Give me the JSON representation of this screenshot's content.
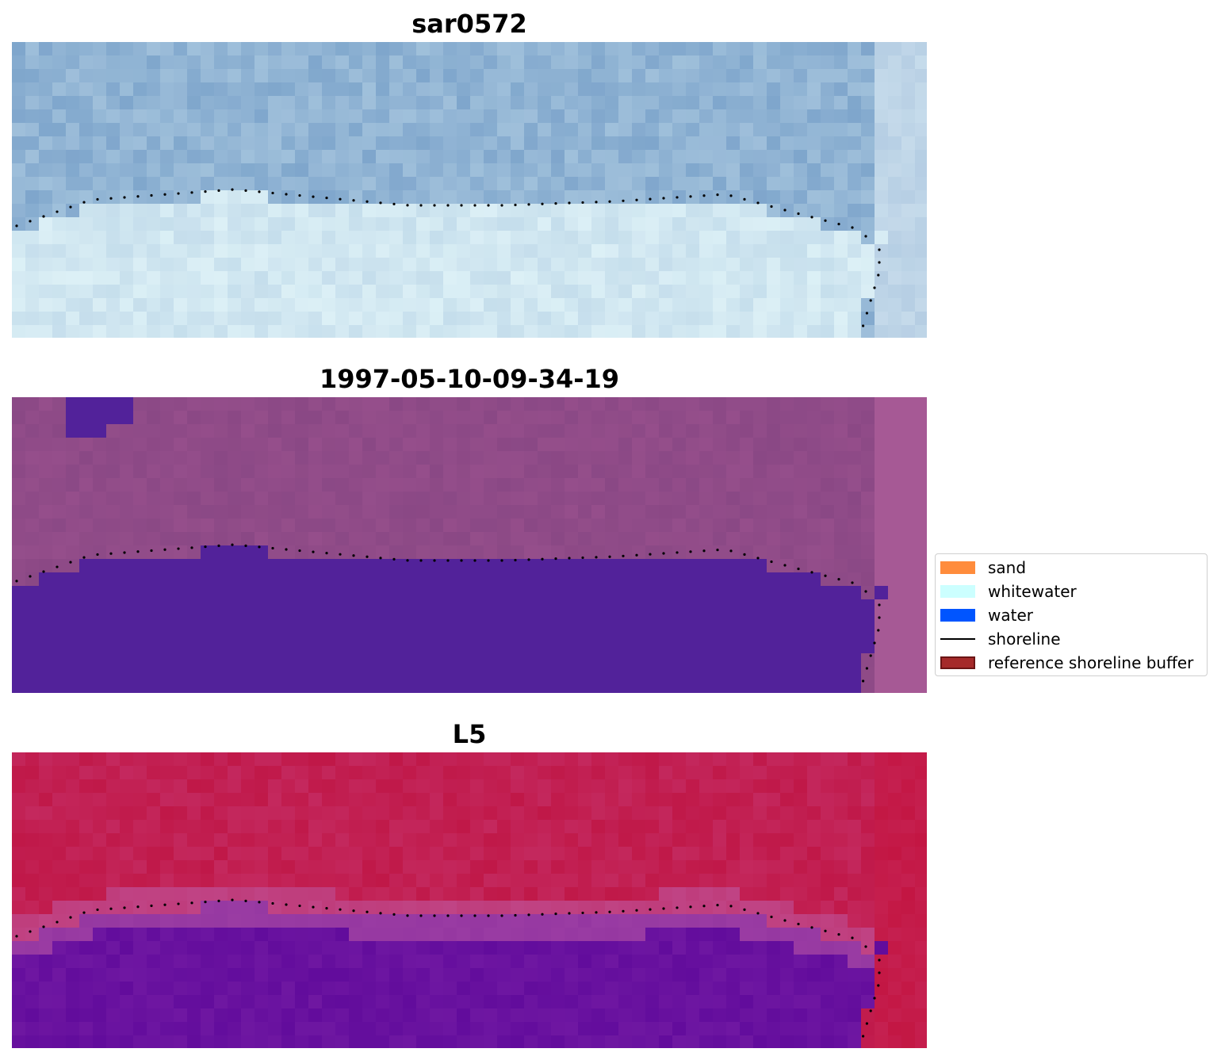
{
  "panels": [
    {
      "title": "sar0572",
      "palette": "sar"
    },
    {
      "title": "1997-05-10-09-34-19",
      "palette": "classified"
    },
    {
      "title": "L5",
      "palette": "ndwi"
    }
  ],
  "legend": {
    "items": [
      {
        "label": "sand",
        "kind": "patch",
        "color": "#ff8c3c"
      },
      {
        "label": "whitewater",
        "kind": "patch",
        "color": "#ccffff"
      },
      {
        "label": "water",
        "kind": "patch",
        "color": "#0055ff"
      },
      {
        "label": "shoreline",
        "kind": "line",
        "color": "#000000"
      },
      {
        "label": "reference shoreline buffer",
        "kind": "patch",
        "color": "#a52a2a",
        "edge": "#6b1515"
      }
    ]
  },
  "colors": {
    "sar_water": "#7fa6cc",
    "sar_land": "#dcf0f6",
    "classified_land": "#8a4885",
    "classified_water": "#52229a",
    "ndwi_land": "#c01848",
    "ndwi_water": "#620c9c"
  }
}
